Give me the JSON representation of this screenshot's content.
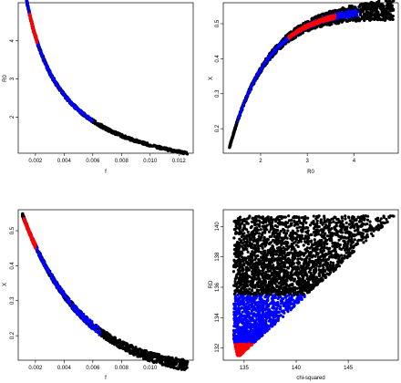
{
  "colors": {
    "black": "#000000",
    "blue": "#0000ff",
    "red": "#ff0000"
  },
  "chart_data": [
    {
      "type": "scatter",
      "xlabel": "f",
      "ylabel": "R0",
      "xlim": [
        0.0008,
        0.013
      ],
      "ylim": [
        1.05,
        5.0
      ],
      "xticks": [
        0.002,
        0.004,
        0.006,
        0.008,
        0.01,
        0.012
      ],
      "xtick_labels": [
        "0.002",
        "0.004",
        "0.006",
        "0.008",
        "0.010",
        "0.012"
      ],
      "yticks": [
        2,
        3,
        4
      ],
      "ytick_labels": [
        "2",
        "3",
        "4"
      ],
      "series": [
        {
          "color": "black",
          "curve": "inverse",
          "k": 0.0128,
          "f_range": [
            0.0011,
            0.0126
          ],
          "spread": [
            0.01,
            0.03
          ]
        },
        {
          "color": "blue",
          "curve": "inverse",
          "k": 0.0128,
          "f_range": [
            0.0011,
            0.006
          ],
          "spread": [
            0.005,
            0.02
          ]
        },
        {
          "color": "red",
          "curve": "inverse",
          "k": 0.0128,
          "f_range": [
            0.0016,
            0.0021
          ],
          "spread": [
            0.004,
            0.015
          ]
        }
      ]
    },
    {
      "type": "scatter",
      "xlabel": "R0",
      "ylabel": "X",
      "xlim": [
        1.2,
        4.95
      ],
      "ylim": [
        0.13,
        0.56
      ],
      "xticks": [
        2,
        3,
        4
      ],
      "xtick_labels": [
        "2",
        "3",
        "4"
      ],
      "yticks": [
        0.2,
        0.3,
        0.4,
        0.5
      ],
      "ytick_labels": [
        "0.2",
        "0.3",
        "0.4",
        "0.5"
      ],
      "series": [
        {
          "color": "black",
          "curve": "saturating",
          "R0_range": [
            1.33,
            4.85
          ],
          "spread": [
            0.002,
            0.03
          ]
        },
        {
          "color": "blue",
          "curve": "saturating",
          "R0_range": [
            1.5,
            4.1
          ],
          "spread": [
            0.002,
            0.012
          ]
        },
        {
          "color": "red",
          "curve": "saturating",
          "R0_range": [
            2.6,
            3.6
          ],
          "spread": [
            0.002,
            0.008
          ]
        }
      ]
    },
    {
      "type": "scatter",
      "xlabel": "f",
      "ylabel": "X",
      "xlim": [
        0.0008,
        0.013
      ],
      "ylim": [
        0.13,
        0.56
      ],
      "xticks": [
        0.002,
        0.004,
        0.006,
        0.008,
        0.01,
        0.012
      ],
      "xtick_labels": [
        "0.002",
        "0.004",
        "0.006",
        "0.008",
        "0.010",
        "0.012"
      ],
      "yticks": [
        0.2,
        0.3,
        0.4,
        0.5
      ],
      "ytick_labels": [
        "0.2",
        "0.3",
        "0.4",
        "0.5"
      ],
      "series": [
        {
          "color": "black",
          "curve": "decay",
          "f_range": [
            0.0011,
            0.0126
          ],
          "spread": [
            0.004,
            0.015
          ]
        },
        {
          "color": "blue",
          "curve": "decay",
          "f_range": [
            0.0012,
            0.0065
          ],
          "spread": [
            0.003,
            0.012
          ]
        },
        {
          "color": "red",
          "curve": "decay",
          "f_range": [
            0.0012,
            0.002
          ],
          "spread": [
            0.003,
            0.008
          ]
        }
      ]
    },
    {
      "type": "scatter",
      "xlabel": "chi-squared",
      "ylabel": "RD",
      "xlim": [
        133.0,
        149.8
      ],
      "ylim": [
        131.2,
        141.1
      ],
      "xticks": [
        135,
        140,
        145
      ],
      "xtick_labels": [
        "135",
        "140",
        "145"
      ],
      "yticks": [
        132,
        134,
        136,
        138,
        140
      ],
      "ytick_labels": [
        "132",
        "134",
        "136",
        "138",
        "140"
      ],
      "region": {
        "chi_min": 134.0,
        "tip": [
          134.6,
          131.5
        ],
        "upper_right": [
          149.5,
          140.7
        ],
        "rd_max": 140.7
      },
      "bands": [
        {
          "color": "red",
          "rd_range": [
            131.5,
            132.4
          ]
        },
        {
          "color": "blue",
          "rd_range": [
            132.4,
            135.5
          ]
        },
        {
          "color": "black",
          "rd_range": [
            135.5,
            140.7
          ]
        }
      ]
    }
  ]
}
